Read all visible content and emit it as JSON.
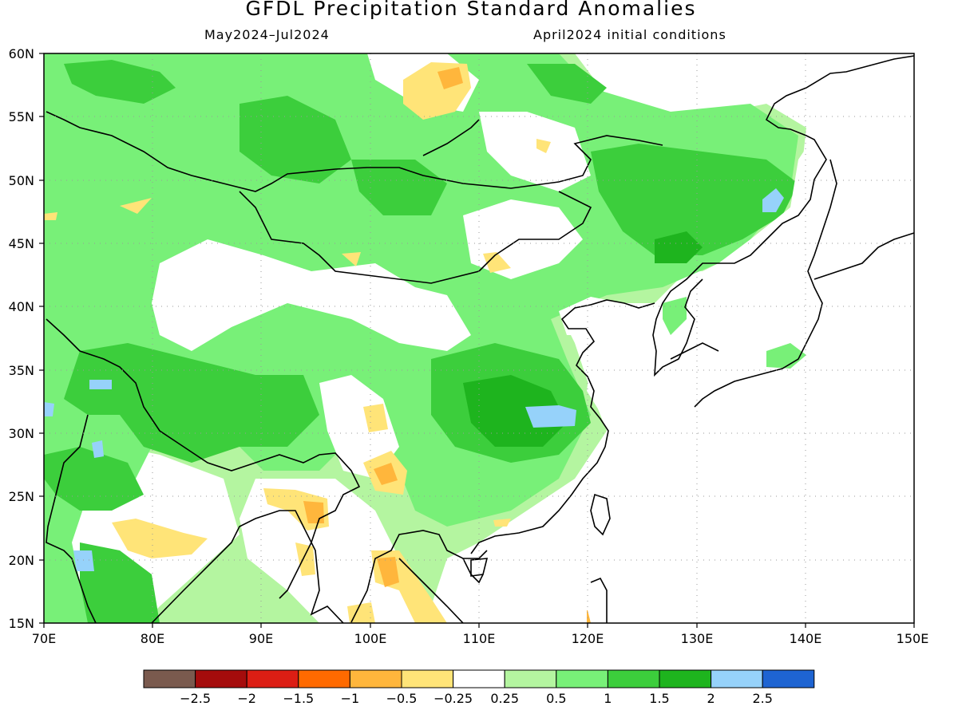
{
  "title": "GFDL Precipitation Standard Anomalies",
  "period": "May2024–Jul2024",
  "init": "April2024 initial conditions",
  "lat_ticks": [
    "60N",
    "55N",
    "50N",
    "45N",
    "40N",
    "35N",
    "30N",
    "25N",
    "20N",
    "15N"
  ],
  "lon_ticks": [
    "70E",
    "80E",
    "90E",
    "100E",
    "110E",
    "120E",
    "130E",
    "140E",
    "150E"
  ],
  "colorbar": {
    "colors": [
      "#7a5a4e",
      "#a50c0c",
      "#dc1e14",
      "#ff6a00",
      "#ffb63c",
      "#ffe478",
      "#ffffff",
      "#b4f5a0",
      "#78f078",
      "#3cce3c",
      "#1eb41e",
      "#96d2fa",
      "#1e64d2"
    ],
    "labels": [
      "−2.5",
      "−2",
      "−1.5",
      "−1",
      "−0.5",
      "−0.25",
      "0.25",
      "0.5",
      "1",
      "1.5",
      "2",
      "2.5"
    ]
  }
}
